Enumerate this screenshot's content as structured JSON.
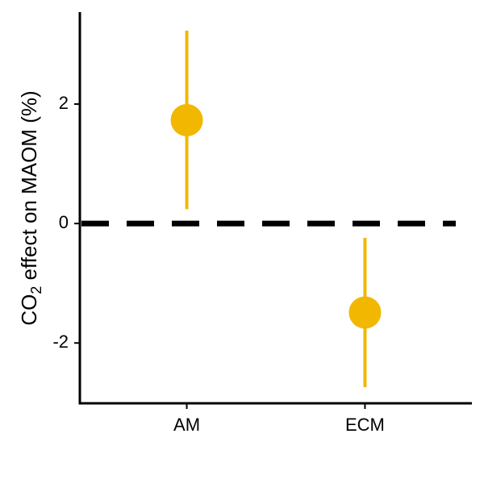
{
  "chart_data": {
    "type": "pointrange",
    "ylabel": {
      "main": "CO",
      "sub": "2",
      "rest": " effect on MAOM (%)"
    },
    "categories": [
      "AM",
      "ECM"
    ],
    "values": [
      1.73,
      -1.49
    ],
    "lower": [
      0.24,
      -2.74
    ],
    "upper": [
      3.23,
      -0.24
    ],
    "color": "#f2b700",
    "ylim": [
      -3.01,
      3.54
    ],
    "yticks": [
      -2,
      0,
      2
    ],
    "hline": 0
  }
}
